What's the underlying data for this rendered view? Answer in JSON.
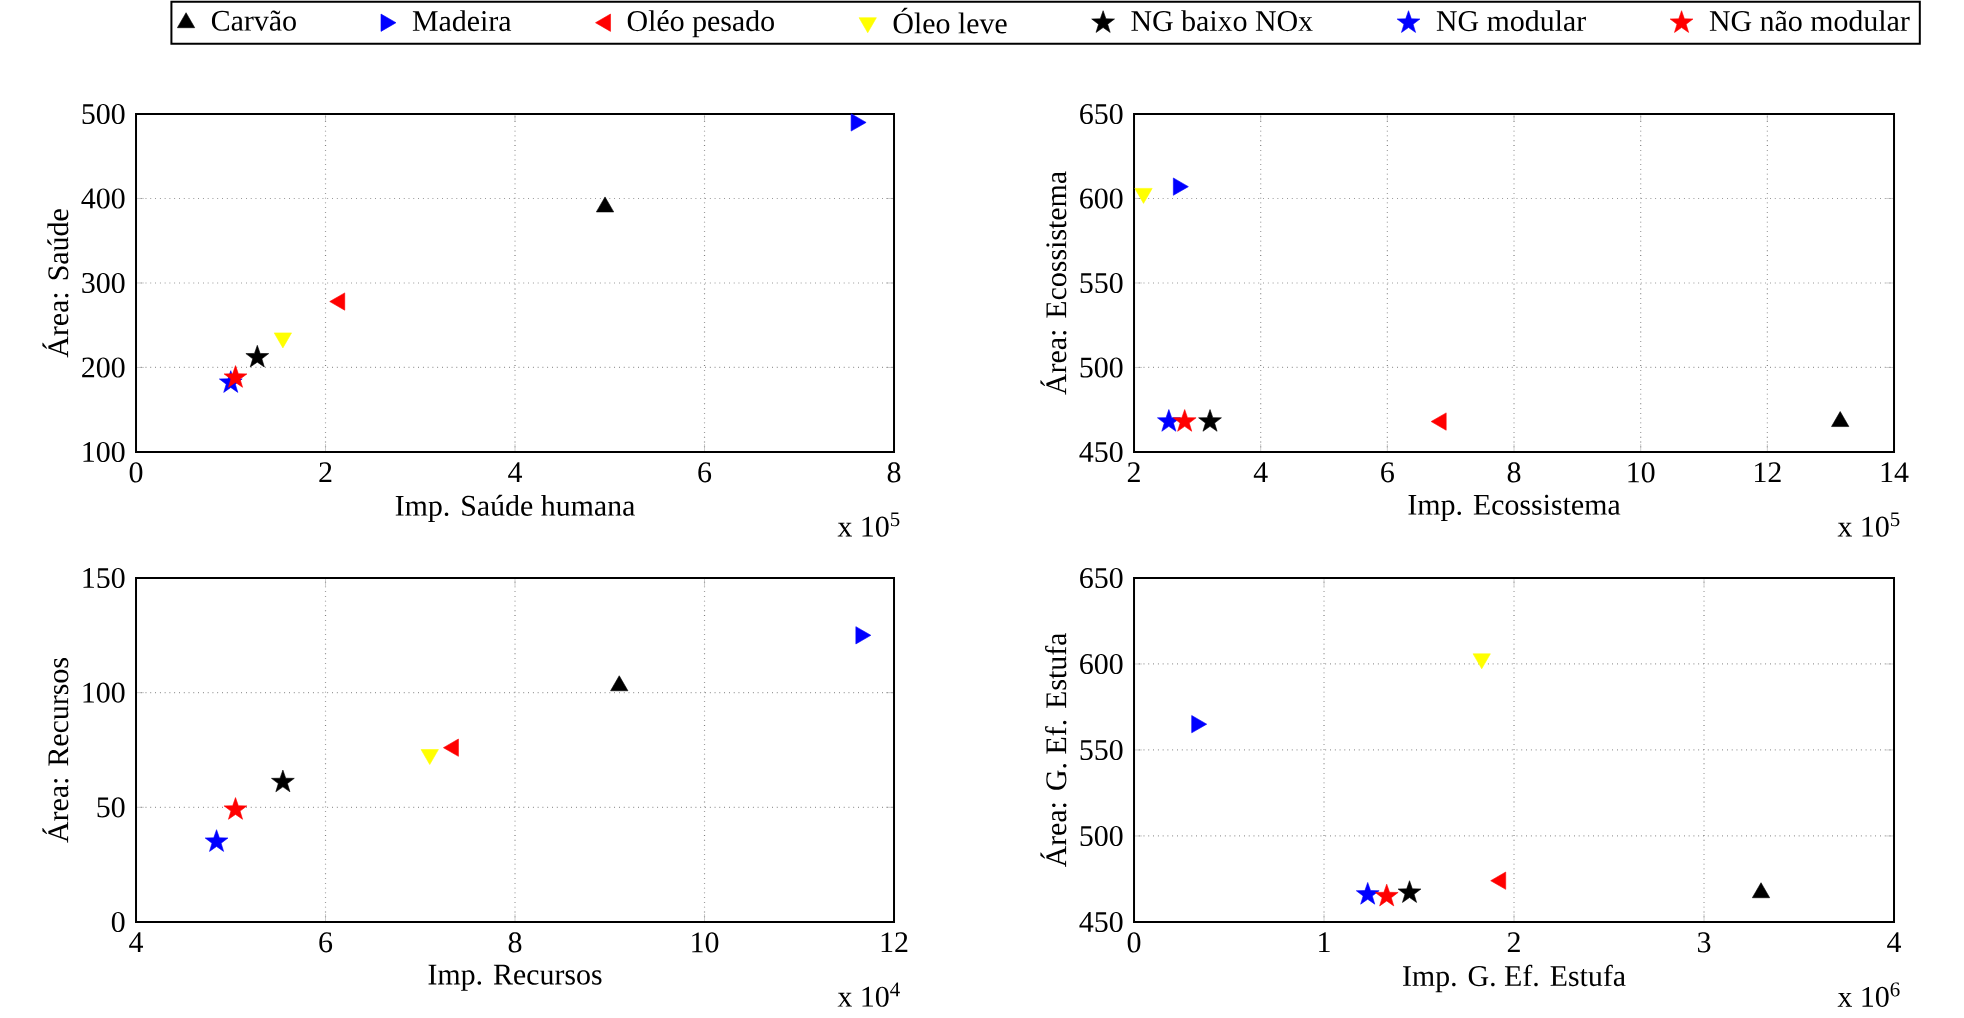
{
  "chart_data": [
    {
      "type": "scatter",
      "xlabel": "Imp. Saúde humana",
      "ylabel": "Área: Saúde",
      "xlim": [
        0,
        8
      ],
      "ylim": [
        100,
        500
      ],
      "xticks": [
        0,
        2,
        4,
        6,
        8
      ],
      "yticks": [
        100,
        200,
        300,
        400,
        500
      ],
      "grid": true,
      "legend": "top",
      "annotations": [
        "x 10$^{5}$"
      ],
      "series": [
        {
          "name": "Carvão",
          "color": "#000000",
          "marker": "triangle",
          "x": [
            4.95
          ],
          "values": [
            390
          ]
        },
        {
          "name": "Madeira",
          "color": "#0000ff",
          "marker": "triangle",
          "x": [
            7.6
          ],
          "values": [
            490
          ]
        },
        {
          "name": "Oléo pesado",
          "color": "#ff0000",
          "marker": "triangle",
          "x": [
            2.15
          ],
          "values": [
            278
          ]
        },
        {
          "name": "Óleo leve",
          "color": "#ffff00",
          "marker": "triangle",
          "x": [
            1.55
          ],
          "values": [
            235
          ]
        },
        {
          "name": "NG baixo NOx",
          "color": "#000000",
          "marker": "star",
          "x": [
            1.28
          ],
          "values": [
            212
          ]
        },
        {
          "name": "NG modular",
          "color": "#0000ff",
          "marker": "star",
          "x": [
            1.0
          ],
          "values": [
            182
          ]
        },
        {
          "name": "NG não modular",
          "color": "#ff0000",
          "marker": "star",
          "x": [
            1.05
          ],
          "values": [
            188
          ]
        }
      ]
    },
    {
      "type": "scatter",
      "xlabel": "Imp. Ecossistema",
      "ylabel": "Área: Ecossistema",
      "xlim": [
        2,
        14
      ],
      "ylim": [
        450,
        650
      ],
      "xticks": [
        2,
        4,
        6,
        8,
        10,
        12,
        14
      ],
      "yticks": [
        450,
        500,
        550,
        600,
        650
      ],
      "grid": true,
      "annotations": [
        "x 10$^{5}$"
      ],
      "series": [
        {
          "color": "#000000",
          "marker": "triangle",
          "x": [
            13.15
          ],
          "values": [
            468
          ]
        },
        {
          "color": "#0000ff",
          "marker": "triangle",
          "x": [
            2.7
          ],
          "values": [
            607
          ]
        },
        {
          "color": "#ff0000",
          "marker": "triangle",
          "x": [
            6.85
          ],
          "values": [
            468
          ]
        },
        {
          "color": "#ffff00",
          "marker": "triangle",
          "x": [
            2.15
          ],
          "values": [
            603
          ]
        },
        {
          "color": "#000000",
          "marker": "star",
          "x": [
            3.2
          ],
          "values": [
            468
          ]
        },
        {
          "color": "#0000ff",
          "marker": "star",
          "x": [
            2.55
          ],
          "values": [
            468
          ]
        },
        {
          "color": "#ff0000",
          "marker": "star",
          "x": [
            2.8
          ],
          "values": [
            468
          ]
        }
      ]
    },
    {
      "type": "scatter",
      "xlabel": "Imp. Recursos",
      "ylabel": "Área: Recursos",
      "xlim": [
        4,
        12
      ],
      "ylim": [
        0,
        150
      ],
      "xticks": [
        4,
        6,
        8,
        10,
        12
      ],
      "yticks": [
        0,
        50,
        100,
        150
      ],
      "grid": true,
      "annotations": [
        "x 10$^{4}$"
      ],
      "series": [
        {
          "color": "#000000",
          "marker": "triangle",
          "x": [
            9.1
          ],
          "values": [
            103
          ]
        },
        {
          "color": "#0000ff",
          "marker": "triangle",
          "x": [
            11.65
          ],
          "values": [
            125
          ]
        },
        {
          "color": "#ff0000",
          "marker": "triangle",
          "x": [
            7.35
          ],
          "values": [
            76
          ]
        },
        {
          "color": "#ffff00",
          "marker": "triangle",
          "x": [
            7.1
          ],
          "values": [
            73
          ]
        },
        {
          "color": "#000000",
          "marker": "star",
          "x": [
            5.55
          ],
          "values": [
            61
          ]
        },
        {
          "color": "#0000ff",
          "marker": "star",
          "x": [
            4.85
          ],
          "values": [
            35
          ]
        },
        {
          "color": "#ff0000",
          "marker": "star",
          "x": [
            5.05
          ],
          "values": [
            49
          ]
        }
      ]
    },
    {
      "type": "scatter",
      "xlabel": "Imp. G. Ef. Estufa",
      "ylabel": "Área: G. Ef. Estufa",
      "xlim": [
        0,
        4
      ],
      "ylim": [
        450,
        650
      ],
      "xticks": [
        0,
        1,
        2,
        3,
        4
      ],
      "yticks": [
        450,
        500,
        550,
        600,
        650
      ],
      "grid": true,
      "annotations": [
        "x 10$^{6}$"
      ],
      "series": [
        {
          "color": "#000000",
          "marker": "triangle",
          "x": [
            3.3
          ],
          "values": [
            467
          ]
        },
        {
          "color": "#0000ff",
          "marker": "triangle",
          "x": [
            0.33
          ],
          "values": [
            565
          ]
        },
        {
          "color": "#ff0000",
          "marker": "triangle",
          "x": [
            1.93
          ],
          "values": [
            474
          ]
        },
        {
          "color": "#ffff00",
          "marker": "triangle",
          "x": [
            1.83
          ],
          "values": [
            603
          ]
        },
        {
          "color": "#000000",
          "marker": "star",
          "x": [
            1.45
          ],
          "values": [
            467
          ]
        },
        {
          "color": "#0000ff",
          "marker": "star",
          "x": [
            1.23
          ],
          "values": [
            466
          ]
        },
        {
          "color": "#ff0000",
          "marker": "star",
          "x": [
            1.33
          ],
          "values": [
            465
          ]
        }
      ]
    }
  ]
}
